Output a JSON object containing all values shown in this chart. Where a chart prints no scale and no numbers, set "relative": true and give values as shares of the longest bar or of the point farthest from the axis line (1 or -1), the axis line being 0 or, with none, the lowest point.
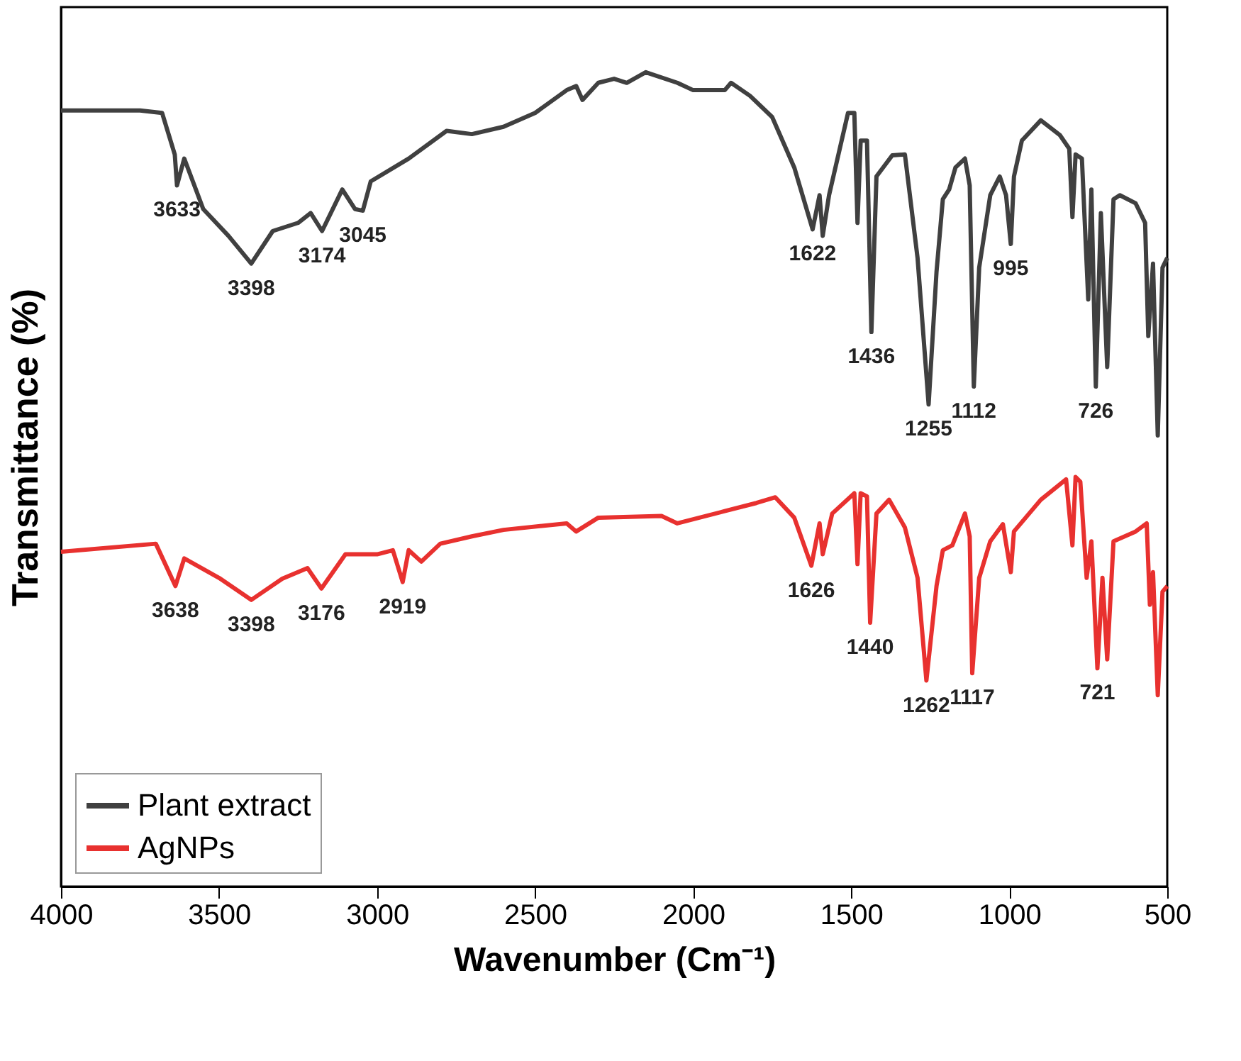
{
  "chart_data": {
    "type": "line",
    "xlabel": "Wavenumber (Cm⁻¹)",
    "ylabel": "Transmittance (%)",
    "relative": true,
    "xlim": [
      4000,
      500
    ],
    "xticks": [
      4000,
      3500,
      3000,
      2500,
      2000,
      1500,
      1000,
      500
    ],
    "tick_labels": "x",
    "grid": false,
    "legend": "bottom left",
    "line_style": "solid",
    "marker": "none",
    "series": [
      {
        "name": "Plant extract",
        "color": "#404040",
        "x": [
          4000,
          3750,
          3680,
          3640,
          3633,
          3610,
          3550,
          3470,
          3398,
          3330,
          3250,
          3210,
          3174,
          3110,
          3070,
          3045,
          3020,
          2900,
          2780,
          2700,
          2600,
          2500,
          2400,
          2370,
          2350,
          2300,
          2250,
          2210,
          2150,
          2050,
          2000,
          1900,
          1880,
          1820,
          1750,
          1680,
          1622,
          1600,
          1590,
          1570,
          1510,
          1490,
          1480,
          1470,
          1450,
          1436,
          1420,
          1370,
          1330,
          1290,
          1255,
          1230,
          1210,
          1190,
          1170,
          1140,
          1125,
          1112,
          1095,
          1060,
          1030,
          1010,
          995,
          985,
          960,
          900,
          840,
          810,
          800,
          790,
          770,
          750,
          740,
          726,
          710,
          690,
          670,
          650,
          600,
          570,
          560,
          545,
          530,
          515,
          500
        ],
        "values": [
          0.953,
          0.953,
          0.95,
          0.899,
          0.861,
          0.894,
          0.832,
          0.799,
          0.765,
          0.805,
          0.815,
          0.827,
          0.805,
          0.856,
          0.832,
          0.83,
          0.866,
          0.894,
          0.928,
          0.924,
          0.933,
          0.95,
          0.978,
          0.983,
          0.966,
          0.987,
          0.992,
          0.987,
          1,
          0.987,
          0.978,
          0.978,
          0.987,
          0.971,
          0.945,
          0.883,
          0.807,
          0.849,
          0.799,
          0.849,
          0.95,
          0.95,
          0.815,
          0.916,
          0.916,
          0.681,
          0.872,
          0.898,
          0.899,
          0.772,
          0.592,
          0.755,
          0.844,
          0.856,
          0.883,
          0.894,
          0.861,
          0.614,
          0.76,
          0.849,
          0.872,
          0.849,
          0.789,
          0.872,
          0.916,
          0.941,
          0.923,
          0.906,
          0.822,
          0.899,
          0.894,
          0.721,
          0.856,
          0.614,
          0.827,
          0.638,
          0.844,
          0.849,
          0.839,
          0.815,
          0.676,
          0.765,
          0.554,
          0.76,
          0.772
        ]
      },
      {
        "name": "AgNPs",
        "color": "#e8312f",
        "x": [
          4000,
          3700,
          3638,
          3610,
          3500,
          3398,
          3300,
          3220,
          3176,
          3100,
          3000,
          2950,
          2919,
          2900,
          2860,
          2800,
          2700,
          2600,
          2400,
          2370,
          2300,
          2100,
          2050,
          1900,
          1800,
          1740,
          1680,
          1626,
          1600,
          1590,
          1560,
          1490,
          1480,
          1470,
          1450,
          1440,
          1420,
          1380,
          1330,
          1290,
          1262,
          1230,
          1210,
          1180,
          1140,
          1125,
          1117,
          1095,
          1060,
          1020,
          995,
          985,
          900,
          820,
          800,
          790,
          775,
          755,
          740,
          721,
          705,
          690,
          670,
          600,
          565,
          555,
          545,
          530,
          515,
          500
        ],
        "values": [
          0.411,
          0.421,
          0.369,
          0.403,
          0.379,
          0.352,
          0.378,
          0.391,
          0.366,
          0.408,
          0.408,
          0.413,
          0.374,
          0.413,
          0.399,
          0.421,
          0.43,
          0.438,
          0.446,
          0.436,
          0.453,
          0.455,
          0.446,
          0.461,
          0.471,
          0.478,
          0.453,
          0.394,
          0.446,
          0.408,
          0.458,
          0.483,
          0.396,
          0.483,
          0.479,
          0.324,
          0.458,
          0.475,
          0.441,
          0.379,
          0.253,
          0.369,
          0.413,
          0.419,
          0.458,
          0.43,
          0.262,
          0.379,
          0.424,
          0.445,
          0.386,
          0.436,
          0.475,
          0.5,
          0.419,
          0.503,
          0.497,
          0.379,
          0.424,
          0.268,
          0.379,
          0.279,
          0.424,
          0.436,
          0.446,
          0.346,
          0.386,
          0.235,
          0.362,
          0.369
        ]
      }
    ],
    "annotations": [
      {
        "text": "3633",
        "x": 3633,
        "y": 0.861
      },
      {
        "text": "3398",
        "x": 3398,
        "y": 0.765
      },
      {
        "text": "3174",
        "x": 3174,
        "y": 0.805
      },
      {
        "text": "3045",
        "x": 3045,
        "y": 0.83
      },
      {
        "text": "1622",
        "x": 1622,
        "y": 0.807
      },
      {
        "text": "1436",
        "x": 1436,
        "y": 0.681
      },
      {
        "text": "1255",
        "x": 1255,
        "y": 0.592
      },
      {
        "text": "1112",
        "x": 1112,
        "y": 0.614
      },
      {
        "text": "995",
        "x": 995,
        "y": 0.789
      },
      {
        "text": "726",
        "x": 726,
        "y": 0.614
      },
      {
        "text": "3638",
        "x": 3638,
        "y": 0.369
      },
      {
        "text": "3398",
        "x": 3398,
        "y": 0.352
      },
      {
        "text": "3176",
        "x": 3176,
        "y": 0.366
      },
      {
        "text": "2919",
        "x": 2919,
        "y": 0.374
      },
      {
        "text": "1626",
        "x": 1626,
        "y": 0.394
      },
      {
        "text": "1440",
        "x": 1440,
        "y": 0.324
      },
      {
        "text": "1262",
        "x": 1262,
        "y": 0.253
      },
      {
        "text": "1117",
        "x": 1117,
        "y": 0.262
      },
      {
        "text": "721",
        "x": 721,
        "y": 0.268
      }
    ]
  }
}
